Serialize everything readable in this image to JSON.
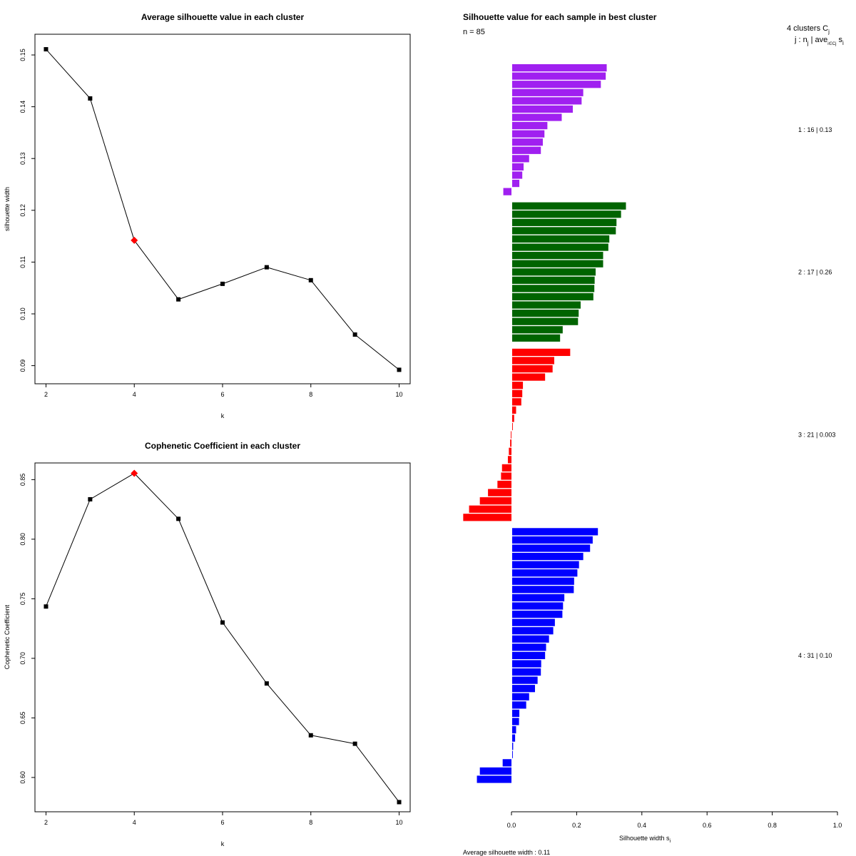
{
  "chart_data": [
    {
      "type": "line",
      "title": "Average silhouette value in each cluster",
      "xlabel": "k",
      "ylabel": "silhouette width",
      "x": [
        2,
        3,
        4,
        5,
        6,
        7,
        8,
        9,
        10
      ],
      "y": [
        0.1511,
        0.1416,
        0.1142,
        0.1028,
        0.1058,
        0.109,
        0.1065,
        0.096,
        0.0892
      ],
      "highlight_index": 2,
      "highlight_color": "#ff0000",
      "xlim": [
        1.75,
        10.25
      ],
      "ylim": [
        0.0865,
        0.154
      ],
      "xticks": [
        2,
        4,
        6,
        8,
        10
      ],
      "xtick_labels": [
        "2",
        "4",
        "6",
        "8",
        "10"
      ],
      "yticks": [
        0.09,
        0.1,
        0.11,
        0.12,
        0.13,
        0.14,
        0.15
      ],
      "ytick_labels": [
        "0.09",
        "0.10",
        "0.11",
        "0.12",
        "0.13",
        "0.14",
        "0.15"
      ]
    },
    {
      "type": "line",
      "title": "Cophenetic Coefficient in each cluster",
      "xlabel": "k",
      "ylabel": "Cophenetic Coefficient",
      "x": [
        2,
        3,
        4,
        5,
        6,
        7,
        8,
        9,
        10
      ],
      "y": [
        0.7435,
        0.8335,
        0.8553,
        0.8171,
        0.7301,
        0.6789,
        0.6354,
        0.6283,
        0.5793
      ],
      "highlight_index": 2,
      "highlight_color": "#ff0000",
      "xlim": [
        1.75,
        10.25
      ],
      "ylim": [
        0.5712,
        0.864
      ],
      "xticks": [
        2,
        4,
        6,
        8,
        10
      ],
      "xtick_labels": [
        "2",
        "4",
        "6",
        "8",
        "10"
      ],
      "yticks": [
        0.6,
        0.65,
        0.7,
        0.75,
        0.8,
        0.85
      ],
      "ytick_labels": [
        "0.60",
        "0.65",
        "0.70",
        "0.75",
        "0.80",
        "0.85"
      ]
    },
    {
      "type": "bar",
      "orientation": "horizontal",
      "title": "Silhouette value for each sample in best cluster",
      "n_label": "n = 85",
      "xlabel": "Silhouette width s",
      "xlabel_sub": "i",
      "footer": "Average silhouette width :  0.11",
      "legend_header_line1": "4  clusters  C",
      "legend_header_sub1": "j",
      "legend_header_line2": "j :  n",
      "legend_header_sub2": "j",
      "legend_header_rest": " | ave",
      "legend_header_sub3": "i∈Cj",
      "legend_header_end": " s",
      "legend_header_sub4": "i",
      "xlim": [
        0,
        1.0
      ],
      "xticks": [
        0,
        0.2,
        0.4,
        0.6,
        0.8,
        1.0
      ],
      "xtick_labels": [
        "0.0",
        "0.2",
        "0.4",
        "0.6",
        "0.8",
        "1.0"
      ],
      "clusters": [
        {
          "label": "1 :   16  |  0.13",
          "color": "#a020f0",
          "values": [
            0.29,
            0.287,
            0.272,
            0.218,
            0.213,
            0.186,
            0.152,
            0.108,
            0.099,
            0.094,
            0.088,
            0.052,
            0.035,
            0.031,
            0.022,
            -0.025
          ]
        },
        {
          "label": "2 :   17  |  0.26",
          "color": "#006400",
          "values": [
            0.349,
            0.334,
            0.32,
            0.318,
            0.298,
            0.295,
            0.279,
            0.279,
            0.256,
            0.253,
            0.252,
            0.249,
            0.21,
            0.204,
            0.202,
            0.155,
            0.147
          ]
        },
        {
          "label": "3 :   21  |  0.003",
          "color": "#ff0000",
          "values": [
            0.178,
            0.129,
            0.124,
            0.101,
            0.033,
            0.031,
            0.028,
            0.012,
            0.006,
            0.002,
            -0.002,
            -0.004,
            -0.008,
            -0.011,
            -0.029,
            -0.032,
            -0.043,
            -0.072,
            -0.097,
            -0.13,
            -0.148
          ]
        },
        {
          "label": "4 :   31  |  0.10",
          "color": "#0000ff",
          "values": [
            0.263,
            0.247,
            0.239,
            0.218,
            0.205,
            0.2,
            0.19,
            0.189,
            0.16,
            0.156,
            0.154,
            0.131,
            0.126,
            0.113,
            0.104,
            0.101,
            0.089,
            0.088,
            0.078,
            0.07,
            0.052,
            0.043,
            0.022,
            0.021,
            0.012,
            0.009,
            0.003,
            0.002,
            -0.027,
            -0.097,
            -0.106
          ]
        }
      ]
    }
  ]
}
